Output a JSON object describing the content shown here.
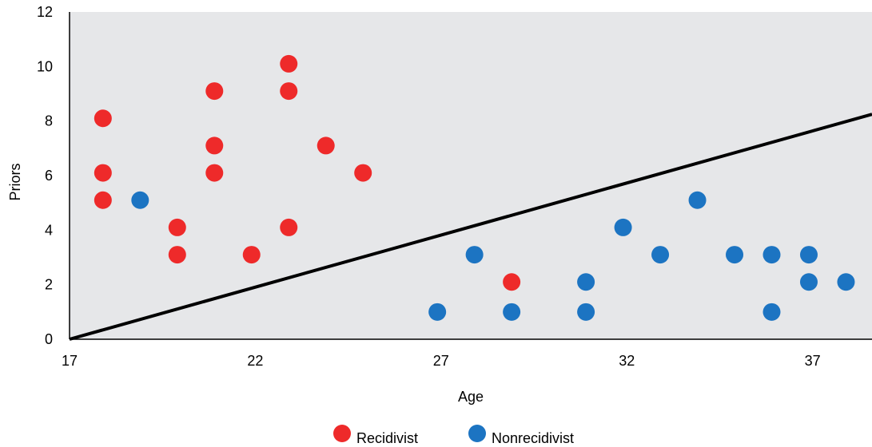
{
  "chart_data": {
    "type": "scatter",
    "title": "",
    "xlabel": "Age",
    "ylabel": "Priors",
    "xlim": [
      17,
      38.6
    ],
    "ylim": [
      0,
      12
    ],
    "x_ticks": [
      17,
      22,
      27,
      32,
      37
    ],
    "y_ticks": [
      0,
      2,
      4,
      6,
      8,
      10,
      12
    ],
    "background": "#e6e7e9",
    "legend_position": "bottom",
    "series": [
      {
        "name": "Recidivist",
        "color": "#ee2a2a",
        "points": [
          {
            "x": 17.9,
            "y": 8.1
          },
          {
            "x": 17.9,
            "y": 6.1
          },
          {
            "x": 17.9,
            "y": 5.1
          },
          {
            "x": 19.9,
            "y": 4.1
          },
          {
            "x": 19.9,
            "y": 3.1
          },
          {
            "x": 20.9,
            "y": 9.1
          },
          {
            "x": 20.9,
            "y": 7.1
          },
          {
            "x": 20.9,
            "y": 6.1
          },
          {
            "x": 21.9,
            "y": 3.1
          },
          {
            "x": 22.9,
            "y": 10.1
          },
          {
            "x": 22.9,
            "y": 9.1
          },
          {
            "x": 22.9,
            "y": 4.1
          },
          {
            "x": 23.9,
            "y": 7.1
          },
          {
            "x": 24.9,
            "y": 6.1
          },
          {
            "x": 28.9,
            "y": 2.1
          }
        ]
      },
      {
        "name": "Nonrecidivist",
        "color": "#1c74c2",
        "points": [
          {
            "x": 18.9,
            "y": 5.1
          },
          {
            "x": 26.9,
            "y": 1.0
          },
          {
            "x": 27.9,
            "y": 3.1
          },
          {
            "x": 28.9,
            "y": 1.0
          },
          {
            "x": 30.9,
            "y": 2.1
          },
          {
            "x": 30.9,
            "y": 1.0
          },
          {
            "x": 31.9,
            "y": 4.1
          },
          {
            "x": 32.9,
            "y": 3.1
          },
          {
            "x": 33.9,
            "y": 5.1
          },
          {
            "x": 34.9,
            "y": 3.1
          },
          {
            "x": 35.9,
            "y": 3.1
          },
          {
            "x": 35.9,
            "y": 1.0
          },
          {
            "x": 36.9,
            "y": 3.1
          },
          {
            "x": 36.9,
            "y": 2.1
          },
          {
            "x": 37.9,
            "y": 2.1
          }
        ]
      }
    ],
    "decision_line": {
      "x1": 17,
      "y1": 0,
      "x2": 38.6,
      "y2": 8.25,
      "color": "#000000"
    }
  }
}
